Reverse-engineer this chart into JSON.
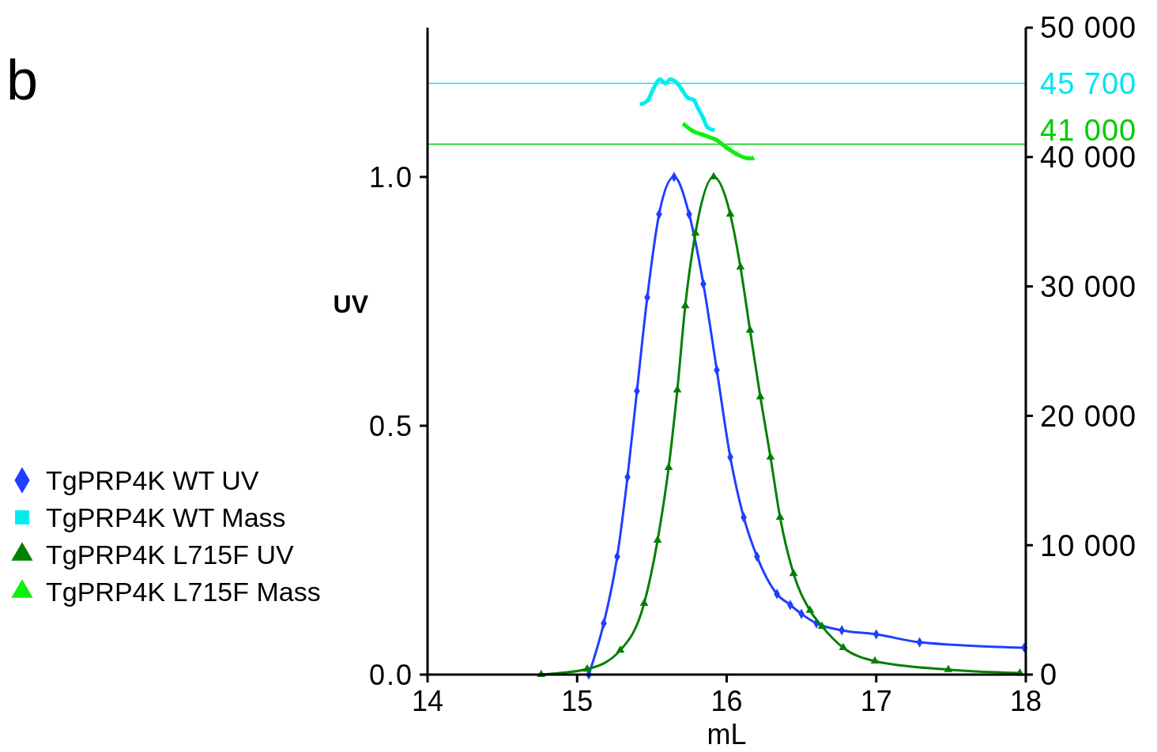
{
  "chart_data": {
    "type": "line",
    "xlabel": "mL",
    "ylabel": "UV",
    "annotations": [
      "b"
    ],
    "xlim": [
      14,
      18
    ],
    "xticks": [
      14,
      15,
      16,
      17,
      18
    ],
    "ylim": [
      0,
      1.3
    ],
    "yticks": [
      {
        "value": 0,
        "label": "0.0"
      },
      0.5,
      {
        "value": 1,
        "label": "1.0"
      }
    ],
    "y2lim": [
      0,
      50000
    ],
    "y2ticks": [
      {
        "value": 0,
        "label": "0"
      },
      {
        "value": 10000,
        "label": "10 000"
      },
      {
        "value": 20000,
        "label": "20 000"
      },
      {
        "value": 30000,
        "label": "30 000"
      },
      {
        "value": 40000,
        "label": "40 000"
      },
      {
        "value": 50000,
        "label": "50 000"
      }
    ],
    "legend": "left",
    "grid": false,
    "ref_lines": [
      {
        "axis": "y2",
        "value": 45700,
        "label": "45 700",
        "color": "#00e5ee"
      },
      {
        "axis": "y2",
        "value": 41000,
        "label": "41 000",
        "color": "#00cc00"
      }
    ],
    "series": [
      {
        "name": "TgPRP4K WT UV",
        "color": "#1f3fff",
        "marker": "diamond",
        "x": [
          15.078,
          15.178,
          15.268,
          15.337,
          15.4,
          15.469,
          15.548,
          15.648,
          15.749,
          15.844,
          15.934,
          16.024,
          16.114,
          16.203,
          16.336,
          16.425,
          16.5,
          16.6,
          16.77,
          17,
          17.29,
          17.99
        ],
        "values": [
          0,
          0.103,
          0.237,
          0.397,
          0.57,
          0.758,
          0.925,
          1,
          0.925,
          0.785,
          0.612,
          0.437,
          0.316,
          0.237,
          0.162,
          0.14,
          0.122,
          0.103,
          0.089,
          0.081,
          0.065,
          0.054
        ]
      },
      {
        "name": "TgPRP4K WT Mass",
        "color": "#00eeee",
        "marker": "square",
        "axis": "y2",
        "x": [
          15.432,
          15.474,
          15.511,
          15.553,
          15.59,
          15.622,
          15.67,
          15.701,
          15.738,
          15.781,
          15.807,
          15.844,
          15.871,
          15.908
        ],
        "values": [
          44100,
          44400,
          45300,
          46000,
          45700,
          46000,
          45700,
          45200,
          44600,
          44400,
          43800,
          43000,
          42300,
          42100
        ]
      },
      {
        "name": "TgPRP4K L715F UV",
        "color": "#008000",
        "marker": "triangle",
        "x": [
          14.76,
          15.067,
          15.289,
          15.448,
          15.538,
          15.612,
          15.67,
          15.723,
          15.791,
          15.913,
          16.024,
          16.092,
          16.156,
          16.225,
          16.293,
          16.357,
          16.447,
          16.557,
          16.637,
          16.779,
          16.991,
          17.482,
          17.96
        ],
        "values": [
          0,
          0.011,
          0.049,
          0.143,
          0.27,
          0.416,
          0.572,
          0.741,
          0.887,
          1,
          0.925,
          0.819,
          0.692,
          0.558,
          0.437,
          0.316,
          0.203,
          0.129,
          0.097,
          0.054,
          0.027,
          0.01,
          0.003
        ]
      },
      {
        "name": "TgPRP4K L715F Mass",
        "color": "#11ee11",
        "marker": "triangle",
        "axis": "y2",
        "x": [
          15.717,
          15.775,
          15.844,
          15.934,
          16.003,
          16.071,
          16.145,
          16.172
        ],
        "values": [
          42500,
          42000,
          41700,
          41300,
          40700,
          40200,
          39900,
          39900
        ]
      }
    ]
  }
}
